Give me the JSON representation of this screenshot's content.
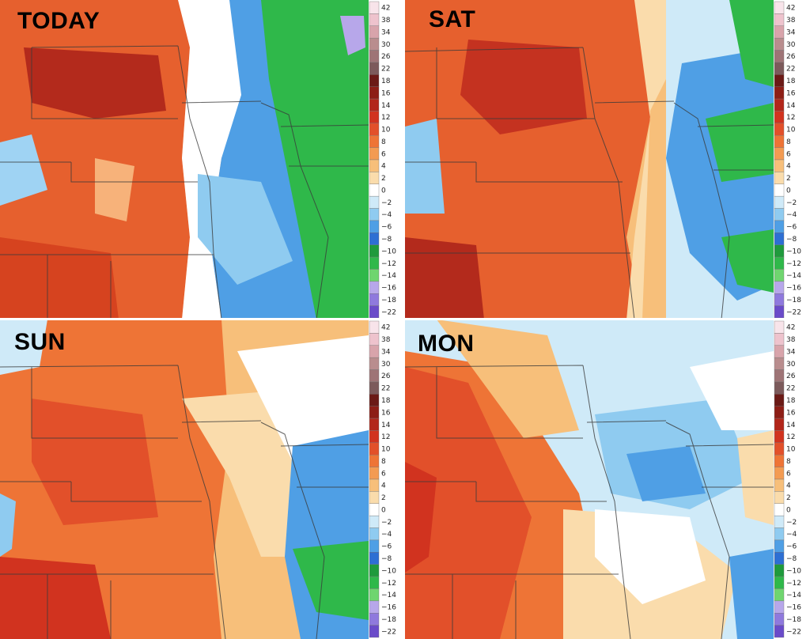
{
  "figure": {
    "panels": [
      {
        "label": "TODAY",
        "scheme": "today"
      },
      {
        "label": "SAT",
        "scheme": "sat"
      },
      {
        "label": "SUN",
        "scheme": "sun"
      },
      {
        "label": "MON",
        "scheme": "mon"
      }
    ]
  },
  "colorbar": {
    "ticks": [
      "42",
      "38",
      "34",
      "30",
      "26",
      "22",
      "18",
      "16",
      "14",
      "12",
      "10",
      "8",
      "6",
      "4",
      "2",
      "0",
      "−2",
      "−4",
      "−6",
      "−8",
      "−10",
      "−12",
      "−14",
      "−16",
      "−18",
      "−22"
    ],
    "colors": [
      "#f8e4ea",
      "#eec3cd",
      "#d8a4ab",
      "#b98d8e",
      "#9e7476",
      "#7c5a5b",
      "#6b1a16",
      "#8d1e16",
      "#b2261a",
      "#d1331f",
      "#e2502a",
      "#ee7436",
      "#f39b52",
      "#f7bf7a",
      "#fadcac",
      "#ffffff",
      "#cfeaf8",
      "#8fcbf0",
      "#4f9fe5",
      "#2d6fd3",
      "#1f9a3c",
      "#2fb84a",
      "#6fd56f",
      "#b7a7ea",
      "#8f79dd",
      "#6a4bc9"
    ]
  }
}
